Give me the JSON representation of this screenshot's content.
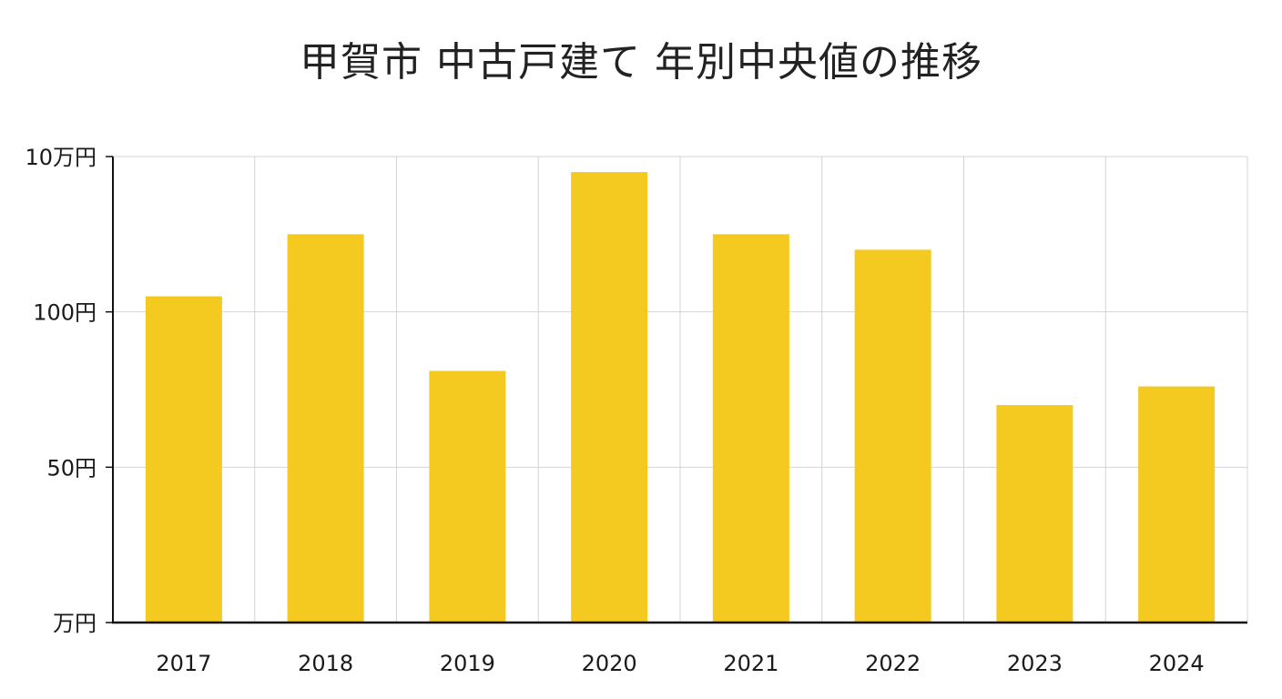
{
  "chart_data": {
    "type": "bar",
    "title": "甲賀市 中古戸建て 年別中央値の推移",
    "xlabel": "",
    "ylabel": "",
    "categories": [
      "2017",
      "2018",
      "2019",
      "2020",
      "2021",
      "2022",
      "2023",
      "2024"
    ],
    "values": [
      1.05,
      1.25,
      0.81,
      1.45,
      1.25,
      1.2,
      0.7,
      0.76
    ],
    "y_ticks": [
      {
        "value": 0,
        "label": "万円"
      },
      {
        "value": 0.5,
        "label": "50円"
      },
      {
        "value": 1.0,
        "label": "100円"
      },
      {
        "value": 1.5,
        "label": "10万円"
      }
    ],
    "ylim": [
      0,
      1.5
    ],
    "grid": true,
    "legend": "none",
    "bar_color": "#f4c920",
    "grid_color": "#d4d4d4",
    "axis_color": "#111111"
  }
}
